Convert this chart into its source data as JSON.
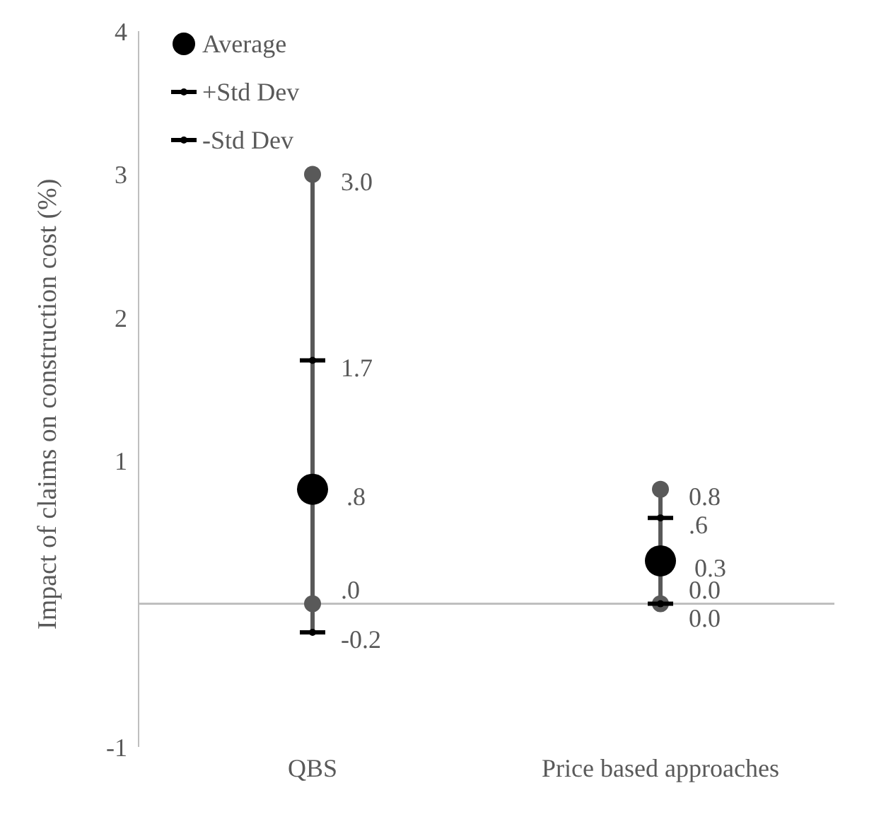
{
  "chart_data": {
    "type": "scatter",
    "ylabel": "Impact of claims on construction cost (%)",
    "categories": [
      "QBS",
      "Price based approaches"
    ],
    "ylim": [
      -1,
      4
    ],
    "yticks": [
      -1,
      1,
      2,
      3,
      4
    ],
    "legend": "top left",
    "grid": false,
    "series": [
      {
        "name": "Average",
        "type": "scatter",
        "marker": "circle",
        "color": "#000000",
        "values": [
          0.8,
          0.3
        ],
        "value_labels": [
          ".8",
          "0.3"
        ]
      },
      {
        "name": "+Std Dev",
        "type": "scatter",
        "color": "#000000",
        "values": [
          1.7,
          0.6
        ],
        "value_labels": [
          "1.7",
          ".6"
        ]
      },
      {
        "name": "-Std Dev",
        "type": "scatter",
        "color": "#000000",
        "values": [
          -0.2,
          0.0
        ],
        "value_labels": [
          "-0.2",
          "0.0"
        ]
      },
      {
        "type": "scatter",
        "marker": "circle",
        "color": "#595959",
        "values": [
          3.0,
          0.8
        ],
        "value_labels": [
          "3.0",
          "0.8"
        ]
      },
      {
        "type": "scatter",
        "marker": "circle",
        "color": "#595959",
        "values": [
          0.0,
          0.0
        ],
        "value_labels": [
          ".0",
          "0.0"
        ]
      }
    ]
  }
}
